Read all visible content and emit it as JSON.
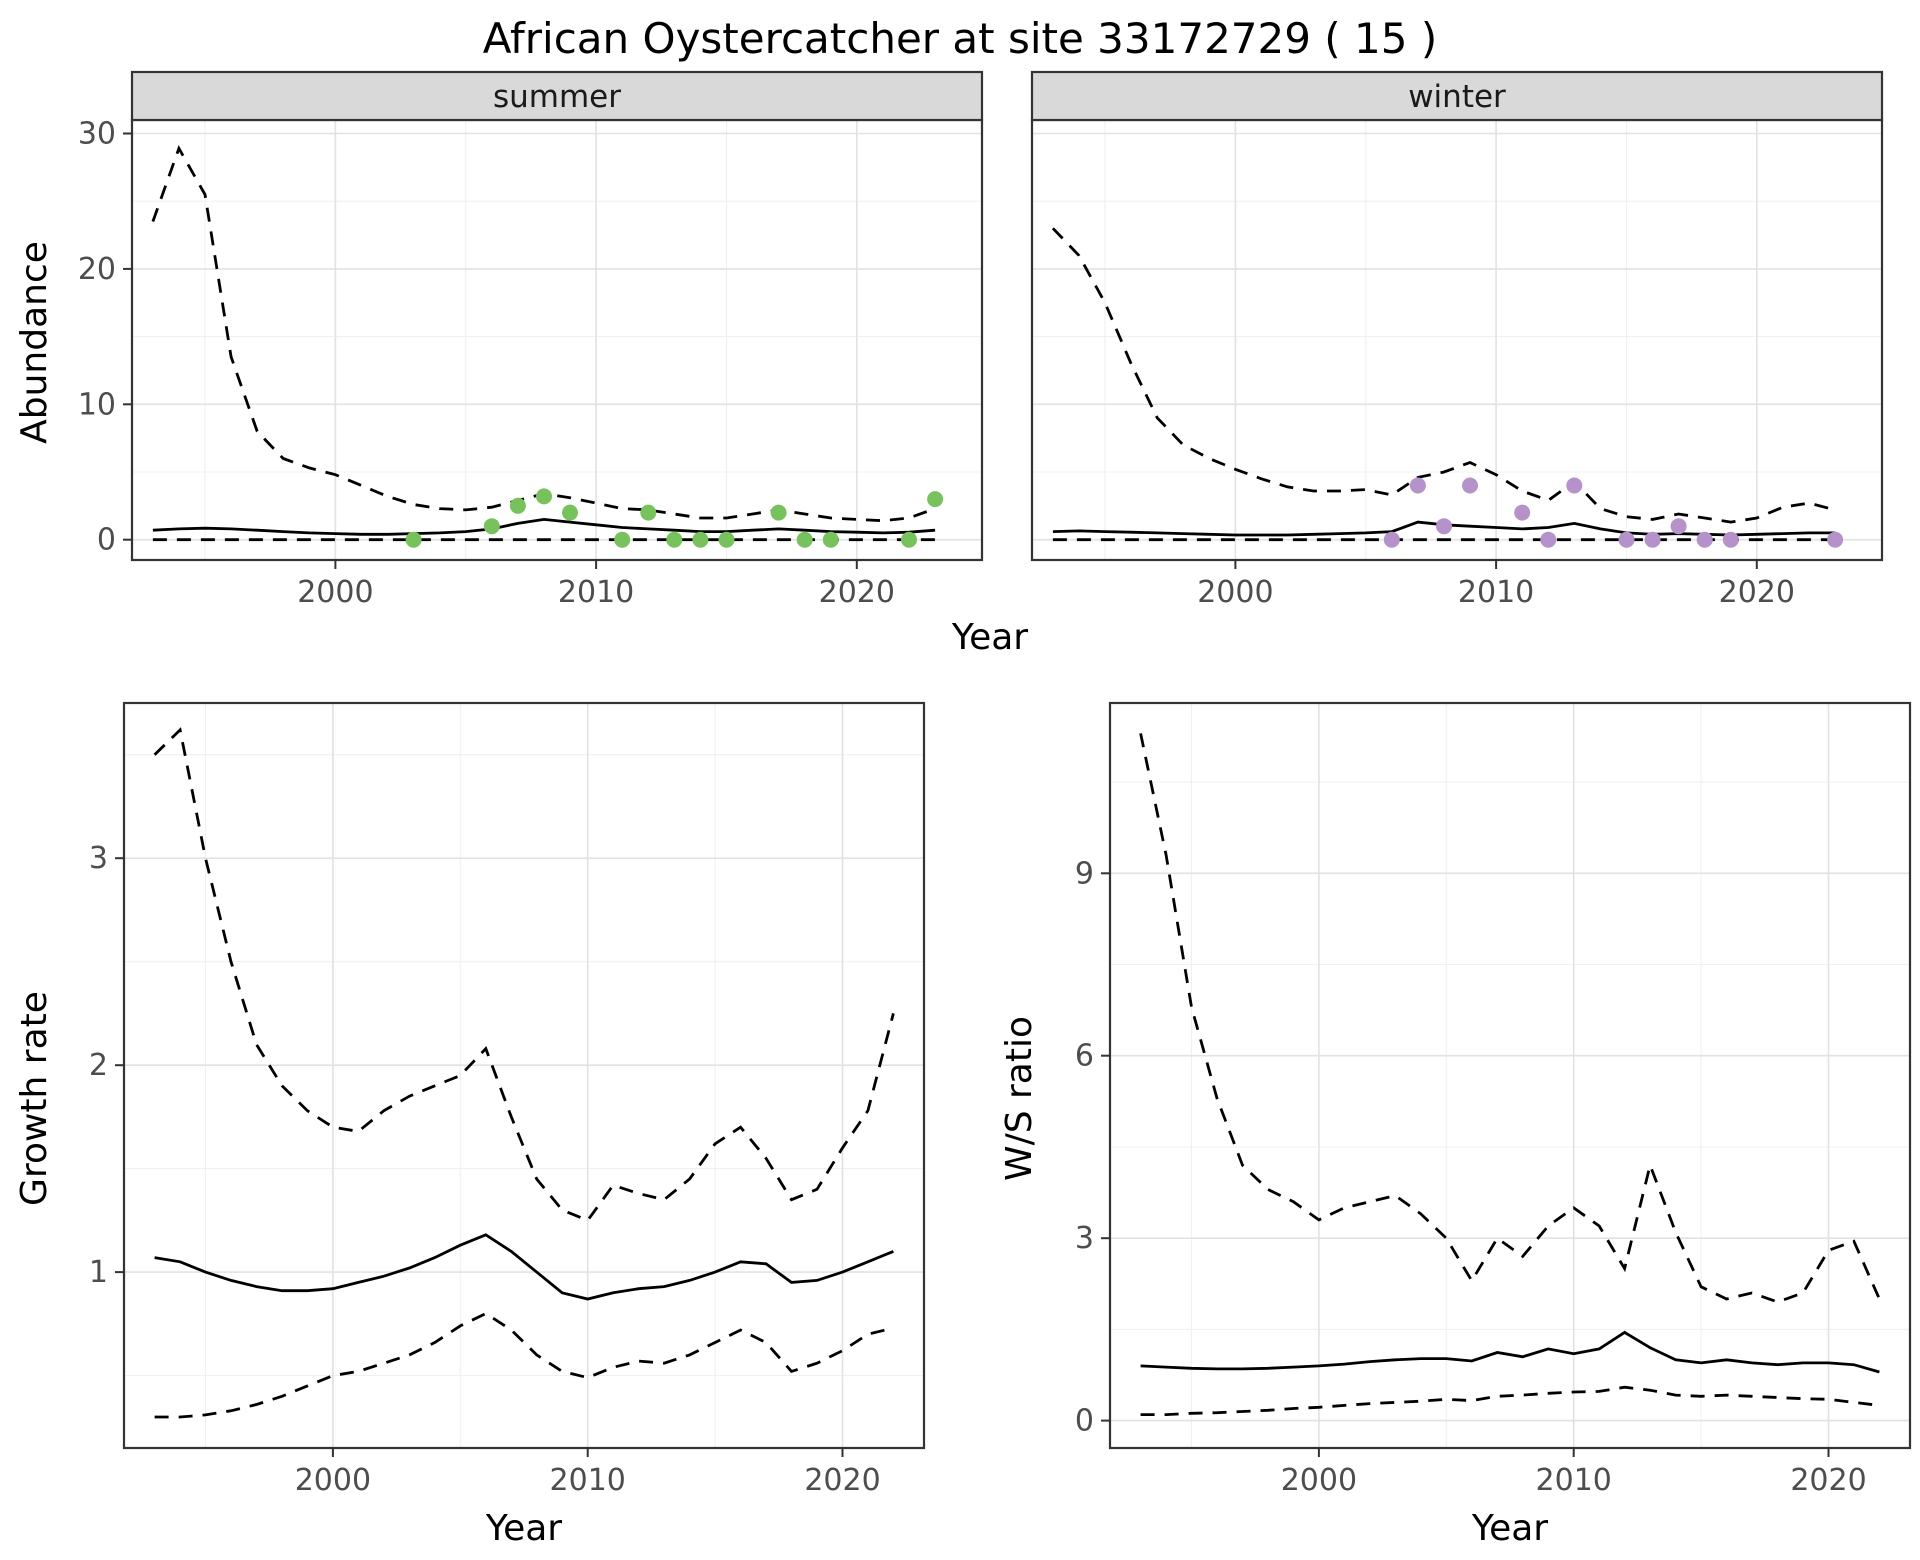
{
  "title": "African Oystercatcher at site 33172729 ( 15 )",
  "axes": {
    "year_label": "Year",
    "abundance_label": "Abundance",
    "growth_label": "Growth rate",
    "ws_label": "W/S ratio"
  },
  "colors": {
    "line": "#000000",
    "grid_major": "#e2e2e2",
    "grid_minor": "#f0f0f0",
    "panel_border": "#333333",
    "strip_bg": "#d9d9d9",
    "strip_text": "#1a1a1a",
    "tick": "#333333",
    "tick_text": "#4d4d4d",
    "summer_points": "#78c25d",
    "winter_points": "#b592c9"
  },
  "chart_data": [
    {
      "id": "abundance_summer",
      "type": "line",
      "name": "Abundance - summer facet",
      "facet_label": "summer",
      "y_labels": true,
      "xlim": [
        1992.2,
        2024.8
      ],
      "ylim": [
        -1.5,
        31
      ],
      "xticks": [
        2000,
        2010,
        2020
      ],
      "yticks": [
        0,
        10,
        20,
        30
      ],
      "years": [
        1993,
        1994,
        1995,
        1996,
        1997,
        1998,
        1999,
        2000,
        2001,
        2002,
        2003,
        2004,
        2005,
        2006,
        2007,
        2008,
        2009,
        2010,
        2011,
        2012,
        2013,
        2014,
        2015,
        2016,
        2017,
        2018,
        2019,
        2020,
        2021,
        2022,
        2023
      ],
      "series": [
        {
          "name": "upper_ci",
          "style": "dashed",
          "y": [
            23.5,
            28.9,
            25.5,
            13.5,
            8.0,
            6.0,
            5.3,
            4.8,
            4.0,
            3.2,
            2.6,
            2.3,
            2.2,
            2.4,
            2.9,
            3.4,
            3.1,
            2.7,
            2.3,
            2.2,
            1.9,
            1.6,
            1.6,
            1.9,
            2.2,
            1.9,
            1.6,
            1.5,
            1.4,
            1.6,
            2.3
          ]
        },
        {
          "name": "mean",
          "style": "solid",
          "y": [
            0.7,
            0.8,
            0.85,
            0.8,
            0.7,
            0.6,
            0.5,
            0.45,
            0.4,
            0.4,
            0.45,
            0.5,
            0.6,
            0.8,
            1.2,
            1.5,
            1.3,
            1.1,
            0.9,
            0.8,
            0.7,
            0.6,
            0.6,
            0.7,
            0.8,
            0.7,
            0.6,
            0.55,
            0.5,
            0.55,
            0.7
          ]
        },
        {
          "name": "lower_ci",
          "style": "dashed",
          "y": [
            0,
            0,
            0,
            0,
            0,
            0,
            0,
            0,
            0,
            0,
            0,
            0,
            0,
            0,
            0,
            0,
            0,
            0,
            0,
            0,
            0,
            0,
            0,
            0,
            0,
            0,
            0,
            0,
            0,
            0,
            0
          ]
        }
      ],
      "points": {
        "name": "observed_counts",
        "color": "#78c25d",
        "x": [
          2003,
          2006,
          2007,
          2008,
          2009,
          2011,
          2012,
          2013,
          2014,
          2015,
          2017,
          2018,
          2019,
          2022,
          2023
        ],
        "y": [
          0,
          1,
          2.5,
          3.2,
          2,
          0,
          2,
          0,
          0,
          0,
          2,
          0,
          0,
          0,
          3
        ]
      }
    },
    {
      "id": "abundance_winter",
      "type": "line",
      "name": "Abundance - winter facet",
      "facet_label": "winter",
      "y_labels": false,
      "xlim": [
        1992.2,
        2024.8
      ],
      "ylim": [
        -1.5,
        31
      ],
      "xticks": [
        2000,
        2010,
        2020
      ],
      "yticks": [
        0,
        10,
        20,
        30
      ],
      "years": [
        1993,
        1994,
        1995,
        1996,
        1997,
        1998,
        1999,
        2000,
        2001,
        2002,
        2003,
        2004,
        2005,
        2006,
        2007,
        2008,
        2009,
        2010,
        2011,
        2012,
        2013,
        2014,
        2015,
        2016,
        2017,
        2018,
        2019,
        2020,
        2021,
        2022,
        2023
      ],
      "series": [
        {
          "name": "upper_ci",
          "style": "dashed",
          "y": [
            23.0,
            21.0,
            17.5,
            13.0,
            9.0,
            7.0,
            6.0,
            5.2,
            4.5,
            3.9,
            3.6,
            3.6,
            3.7,
            3.3,
            4.6,
            5.0,
            5.7,
            4.8,
            3.6,
            2.9,
            4.3,
            2.3,
            1.7,
            1.5,
            1.9,
            1.6,
            1.3,
            1.6,
            2.4,
            2.7,
            2.2
          ]
        },
        {
          "name": "mean",
          "style": "solid",
          "y": [
            0.6,
            0.65,
            0.6,
            0.55,
            0.5,
            0.45,
            0.4,
            0.35,
            0.35,
            0.35,
            0.4,
            0.45,
            0.5,
            0.6,
            1.3,
            1.1,
            1.0,
            0.9,
            0.8,
            0.9,
            1.2,
            0.8,
            0.5,
            0.4,
            0.45,
            0.4,
            0.35,
            0.4,
            0.45,
            0.5,
            0.5
          ]
        },
        {
          "name": "lower_ci",
          "style": "dashed",
          "y": [
            0,
            0,
            0,
            0,
            0,
            0,
            0,
            0,
            0,
            0,
            0,
            0,
            0,
            0,
            0,
            0,
            0,
            0,
            0,
            0,
            0,
            0,
            0,
            0,
            0,
            0,
            0,
            0,
            0,
            0,
            0
          ]
        }
      ],
      "points": {
        "name": "observed_counts",
        "color": "#b592c9",
        "x": [
          2006,
          2007,
          2008,
          2009,
          2011,
          2012,
          2013,
          2015,
          2016,
          2017,
          2018,
          2019,
          2023
        ],
        "y": [
          0,
          4,
          1,
          4,
          2,
          0,
          4,
          0,
          0,
          1,
          0,
          0,
          0
        ]
      }
    },
    {
      "id": "growth_rate",
      "type": "line",
      "name": "Growth rate",
      "facet_label": null,
      "y_labels": true,
      "xlim": [
        1991.8,
        2023.2
      ],
      "ylim": [
        0.15,
        3.75
      ],
      "xticks": [
        2000,
        2010,
        2020
      ],
      "yticks": [
        1,
        2,
        3
      ],
      "years": [
        1993,
        1994,
        1995,
        1996,
        1997,
        1998,
        1999,
        2000,
        2001,
        2002,
        2003,
        2004,
        2005,
        2006,
        2007,
        2008,
        2009,
        2010,
        2011,
        2012,
        2013,
        2014,
        2015,
        2016,
        2017,
        2018,
        2019,
        2020,
        2021,
        2022
      ],
      "series": [
        {
          "name": "upper_ci",
          "style": "dashed",
          "y": [
            3.5,
            3.62,
            3.0,
            2.5,
            2.1,
            1.9,
            1.78,
            1.7,
            1.68,
            1.78,
            1.85,
            1.9,
            1.95,
            2.08,
            1.75,
            1.45,
            1.3,
            1.25,
            1.42,
            1.38,
            1.35,
            1.45,
            1.62,
            1.7,
            1.55,
            1.35,
            1.4,
            1.6,
            1.78,
            2.25
          ]
        },
        {
          "name": "mean",
          "style": "solid",
          "y": [
            1.07,
            1.05,
            1.0,
            0.96,
            0.93,
            0.91,
            0.91,
            0.92,
            0.95,
            0.98,
            1.02,
            1.07,
            1.13,
            1.18,
            1.1,
            1.0,
            0.9,
            0.87,
            0.9,
            0.92,
            0.93,
            0.96,
            1.0,
            1.05,
            1.04,
            0.95,
            0.96,
            1.0,
            1.05,
            1.1
          ]
        },
        {
          "name": "lower_ci",
          "style": "dashed",
          "y": [
            0.3,
            0.3,
            0.31,
            0.33,
            0.36,
            0.4,
            0.45,
            0.5,
            0.52,
            0.56,
            0.6,
            0.66,
            0.74,
            0.8,
            0.72,
            0.6,
            0.52,
            0.49,
            0.54,
            0.57,
            0.56,
            0.6,
            0.66,
            0.72,
            0.66,
            0.52,
            0.56,
            0.62,
            0.7,
            0.73
          ]
        }
      ]
    },
    {
      "id": "ws_ratio",
      "type": "line",
      "name": "Winter/Summer ratio",
      "facet_label": null,
      "y_labels": true,
      "xlim": [
        1991.8,
        2023.2
      ],
      "ylim": [
        -0.45,
        11.8
      ],
      "xticks": [
        2000,
        2010,
        2020
      ],
      "yticks": [
        0,
        3,
        6,
        9
      ],
      "years": [
        1993,
        1994,
        1995,
        1996,
        1997,
        1998,
        1999,
        2000,
        2001,
        2002,
        2003,
        2004,
        2005,
        2006,
        2007,
        2008,
        2009,
        2010,
        2011,
        2012,
        2013,
        2014,
        2015,
        2016,
        2017,
        2018,
        2019,
        2020,
        2021,
        2022
      ],
      "series": [
        {
          "name": "upper_ci",
          "style": "dashed",
          "y": [
            11.3,
            9.3,
            6.8,
            5.3,
            4.2,
            3.8,
            3.6,
            3.3,
            3.5,
            3.6,
            3.7,
            3.4,
            3.0,
            2.3,
            3.0,
            2.7,
            3.2,
            3.5,
            3.2,
            2.5,
            4.2,
            3.1,
            2.2,
            2.0,
            2.1,
            1.95,
            2.1,
            2.8,
            2.95,
            2.0
          ]
        },
        {
          "name": "mean",
          "style": "solid",
          "y": [
            0.9,
            0.88,
            0.86,
            0.85,
            0.85,
            0.86,
            0.88,
            0.9,
            0.93,
            0.97,
            1.0,
            1.02,
            1.02,
            0.98,
            1.12,
            1.05,
            1.18,
            1.1,
            1.18,
            1.45,
            1.2,
            1.0,
            0.95,
            1.0,
            0.95,
            0.92,
            0.95,
            0.95,
            0.92,
            0.8
          ]
        },
        {
          "name": "lower_ci",
          "style": "dashed",
          "y": [
            0.1,
            0.1,
            0.12,
            0.13,
            0.15,
            0.17,
            0.2,
            0.22,
            0.25,
            0.28,
            0.3,
            0.32,
            0.35,
            0.33,
            0.4,
            0.42,
            0.45,
            0.47,
            0.48,
            0.55,
            0.5,
            0.42,
            0.4,
            0.42,
            0.4,
            0.38,
            0.36,
            0.35,
            0.3,
            0.25
          ]
        }
      ]
    }
  ]
}
